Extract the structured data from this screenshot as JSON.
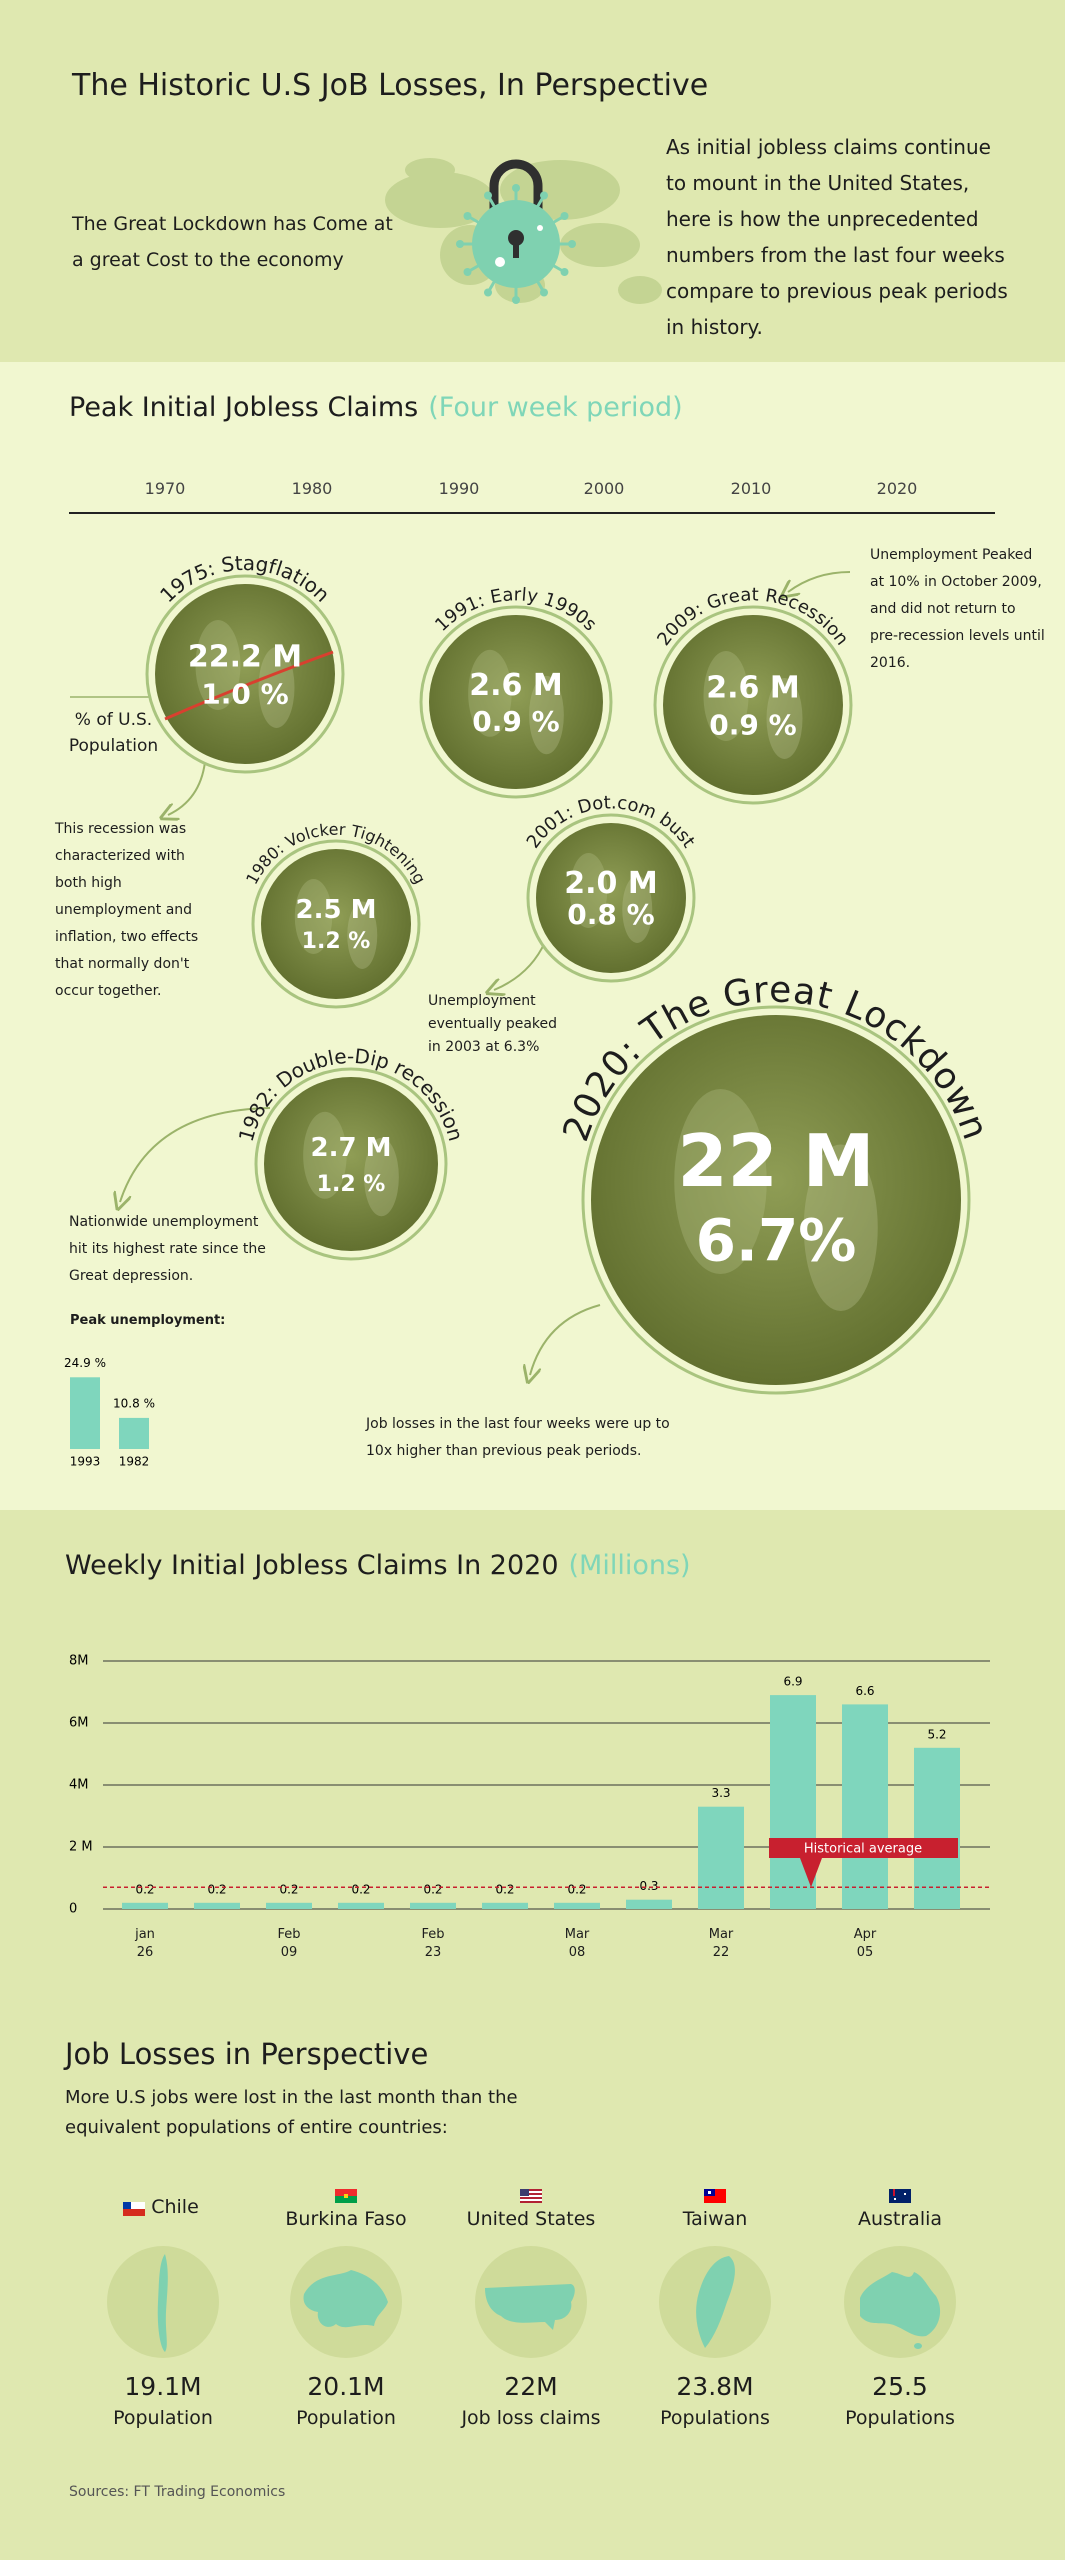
{
  "header": {
    "title": "The Historic U.S JoB Losses, In Perspective",
    "tagline": "The Great Lockdown has Come at a great Cost to the economy",
    "intro": "As initial jobless claims continue to mount in the United States, here is how the unprecedented numbers from the last four weeks compare to previous peak periods in history."
  },
  "timeline": {
    "title": "Peak Initial Jobless Claims",
    "subtitle": "(Four week period)",
    "years": [
      "1970",
      "1980",
      "1990",
      "2000",
      "2010",
      "2020"
    ],
    "events": [
      {
        "title": "1975: Stagflation",
        "jobs": "22.2 M",
        "share": "1.0 %"
      },
      {
        "title": "1991: Early 1990s",
        "jobs": "2.6 M",
        "share": "0.9 %"
      },
      {
        "title": "2009: Great Recession",
        "jobs": "2.6 M",
        "share": "0.9 %"
      },
      {
        "title": "1980: Volcker Tightening",
        "jobs": "2.5 M",
        "share": "1.2 %"
      },
      {
        "title": "2001: Dot.com bust",
        "jobs": "2.0 M",
        "share": "0.8 %"
      },
      {
        "title": "1982: Double-Dip recession",
        "jobs": "2.7 M",
        "share": "1.2 %"
      },
      {
        "title": "2020: The Great Lockdown",
        "jobs": "22 M",
        "share": "6.7%"
      }
    ],
    "share_label": "% of U.S. Population",
    "notes": {
      "stagflation": "This recession was characterized with both high unemployment and inflation, two effects that normally don't occur together.",
      "great_recession": "Unemployment Peaked at 10% in October 2009, and did not return to pre-recession levels until 2016.",
      "dotcom": "Unemployment eventually peaked in 2003 at 6.3%",
      "double_dip": "Nationwide unemployment hit its highest rate since the Great depression.",
      "lockdown": "Job losses in the last four weeks were up to 10x higher than previous peak periods."
    },
    "peak_unemployment": {
      "title": "Peak unemployment:",
      "bars": [
        {
          "label": "1993",
          "value": 24.9,
          "value_label": "24.9 %"
        },
        {
          "label": "1982",
          "value": 10.8,
          "value_label": "10.8 %"
        }
      ]
    }
  },
  "chart_data": {
    "type": "bar",
    "title": "Weekly Initial Jobless Claims In 2020",
    "subtitle": "(Millions)",
    "categories": [
      "jan\n26",
      null,
      "Feb\n09",
      null,
      "Feb\n23",
      null,
      "Mar\n08",
      null,
      "Mar\n22",
      null,
      "Apr\n05",
      null
    ],
    "values": [
      0.2,
      0.2,
      0.2,
      0.2,
      0.2,
      0.2,
      0.2,
      0.3,
      3.3,
      6.9,
      6.6,
      5.2
    ],
    "color": "#7fd6bd",
    "ylim": [
      0,
      8
    ],
    "yticks": [
      0,
      {
        "value": 2,
        "label": "2 M"
      },
      {
        "value": 4,
        "label": "4M"
      },
      {
        "value": 6,
        "label": "6M"
      },
      {
        "value": 8,
        "label": "8M"
      }
    ],
    "grid": true,
    "annotation": {
      "label": "Historical average",
      "value": 0.7,
      "color": "#c8202f"
    }
  },
  "perspective": {
    "title": "Job Losses in Perspective",
    "subtitle": "More U.S jobs were lost in the last month than the equivalent populations of entire countries:",
    "countries": [
      {
        "name": "Chile",
        "value": "19.1M",
        "label": "Population"
      },
      {
        "name": "Burkina Faso",
        "value": "20.1M",
        "label": "Population"
      },
      {
        "name": "United States",
        "value": "22M",
        "label": "Job loss claims"
      },
      {
        "name": "Taiwan",
        "value": "23.8M",
        "label": "Populations"
      },
      {
        "name": "Australia",
        "value": "25.5",
        "label": "Populations"
      }
    ]
  },
  "sources": "Sources: FT Trading Economics"
}
